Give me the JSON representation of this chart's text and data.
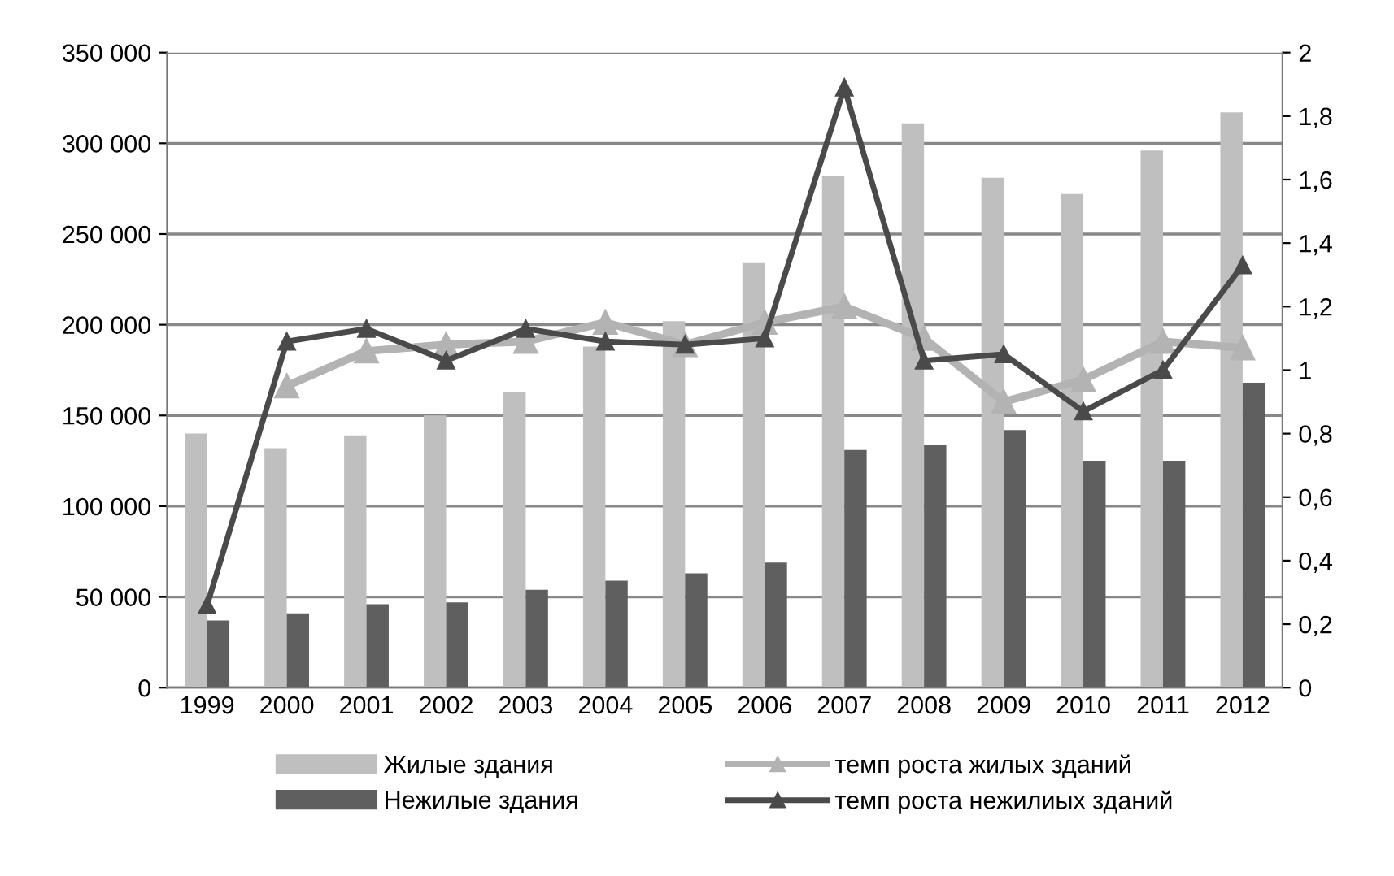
{
  "chart_data": {
    "type": "bar",
    "categories": [
      "1999",
      "2000",
      "2001",
      "2002",
      "2003",
      "2004",
      "2005",
      "2006",
      "2007",
      "2008",
      "2009",
      "2010",
      "2011",
      "2012"
    ],
    "series": [
      {
        "name": "Жилые здания",
        "color": "#bfbfbf",
        "values": [
          140000,
          132000,
          139000,
          150000,
          163000,
          188000,
          202000,
          234000,
          282000,
          311000,
          281000,
          272000,
          296000,
          317000
        ]
      },
      {
        "name": "Нежилые здания",
        "color": "#5f5f5f",
        "values": [
          37000,
          41000,
          46000,
          47000,
          54000,
          59000,
          63000,
          69000,
          131000,
          134000,
          142000,
          125000,
          125000,
          168000
        ]
      },
      {
        "name": "темп роста жилых зданий",
        "type": "line",
        "axis": "y2",
        "marker": "triangle",
        "color": "#b3b3b3",
        "values": [
          null,
          0.95,
          1.06,
          1.08,
          1.09,
          1.15,
          1.08,
          1.15,
          1.2,
          1.1,
          0.9,
          0.97,
          1.09,
          1.07
        ]
      },
      {
        "name": "темп роста нежилиых зданий",
        "type": "line",
        "axis": "y2",
        "marker": "triangle",
        "color": "#4a4a4a",
        "values": [
          0.26,
          1.09,
          1.13,
          1.03,
          1.13,
          1.09,
          1.08,
          1.1,
          1.89,
          1.03,
          1.05,
          0.87,
          1.0,
          1.33
        ]
      }
    ],
    "ylim": [
      0,
      350000
    ],
    "yticks": [
      0,
      {
        "value": 50000,
        "label": "50 000"
      },
      {
        "value": 100000,
        "label": "100 000"
      },
      {
        "value": 150000,
        "label": "150 000"
      },
      {
        "value": 200000,
        "label": "200 000"
      },
      {
        "value": 250000,
        "label": "250 000"
      },
      {
        "value": 300000,
        "label": "300 000"
      },
      {
        "value": 350000,
        "label": "350 000"
      }
    ],
    "y2lim": [
      0,
      2
    ],
    "y2ticks": [
      0,
      {
        "value": 0.2,
        "label": "0,2"
      },
      {
        "value": 0.4,
        "label": "0,4"
      },
      {
        "value": 0.6,
        "label": "0,6"
      },
      {
        "value": 0.8,
        "label": "0,8"
      },
      1,
      {
        "value": 1.2,
        "label": "1,2"
      },
      {
        "value": 1.4,
        "label": "1,4"
      },
      {
        "value": 1.6,
        "label": "1,6"
      },
      {
        "value": 1.8,
        "label": "1,8"
      },
      2
    ],
    "grid": "y",
    "legend": "bottom",
    "line_style": "solid"
  }
}
